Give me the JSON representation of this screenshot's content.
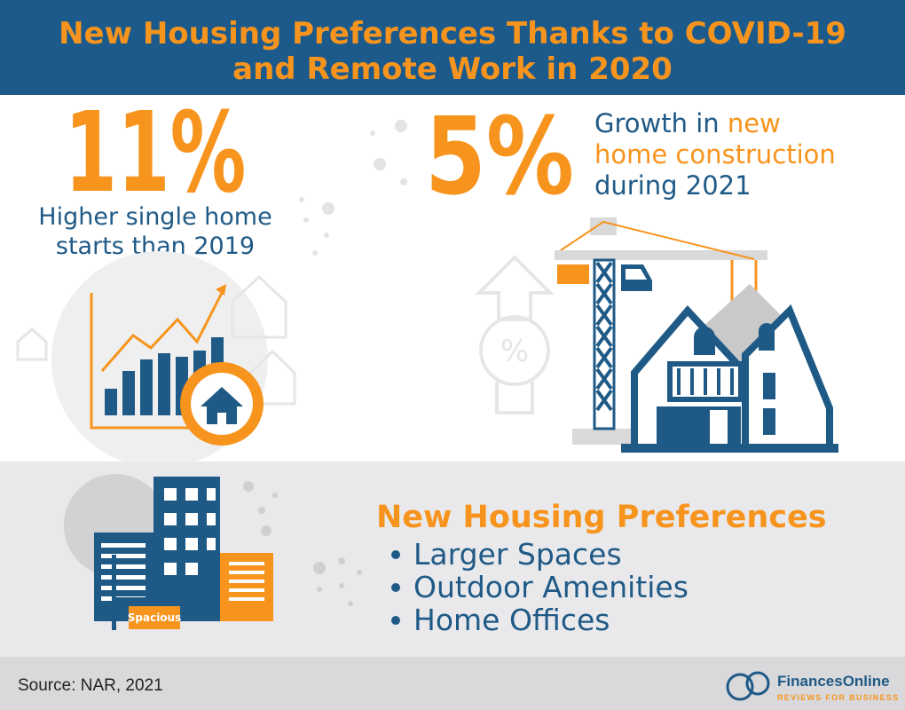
{
  "header": {
    "title_lines": [
      "New Housing Preferences Thanks to COVID-19",
      "and Remote Work in 2020"
    ]
  },
  "stat_single_home": {
    "figure": "11%",
    "caption_lines": [
      "Higher single home",
      "starts than 2019"
    ]
  },
  "stat_construction": {
    "figure": "5%",
    "caption": {
      "line1": "Growth in",
      "line1_highlight": "new",
      "line2_highlight": "home construction",
      "line3": "during 2021"
    }
  },
  "illustration": {
    "sign": "Spacious"
  },
  "preferences": {
    "heading": "New Housing Preferences",
    "items": [
      "Larger Spaces",
      "Outdoor Amenities",
      "Home Offices"
    ]
  },
  "footer": {
    "source": "Source: NAR, 2021",
    "brand": "FinancesOnline",
    "tagline": "REVIEWS FOR BUSINESS"
  }
}
